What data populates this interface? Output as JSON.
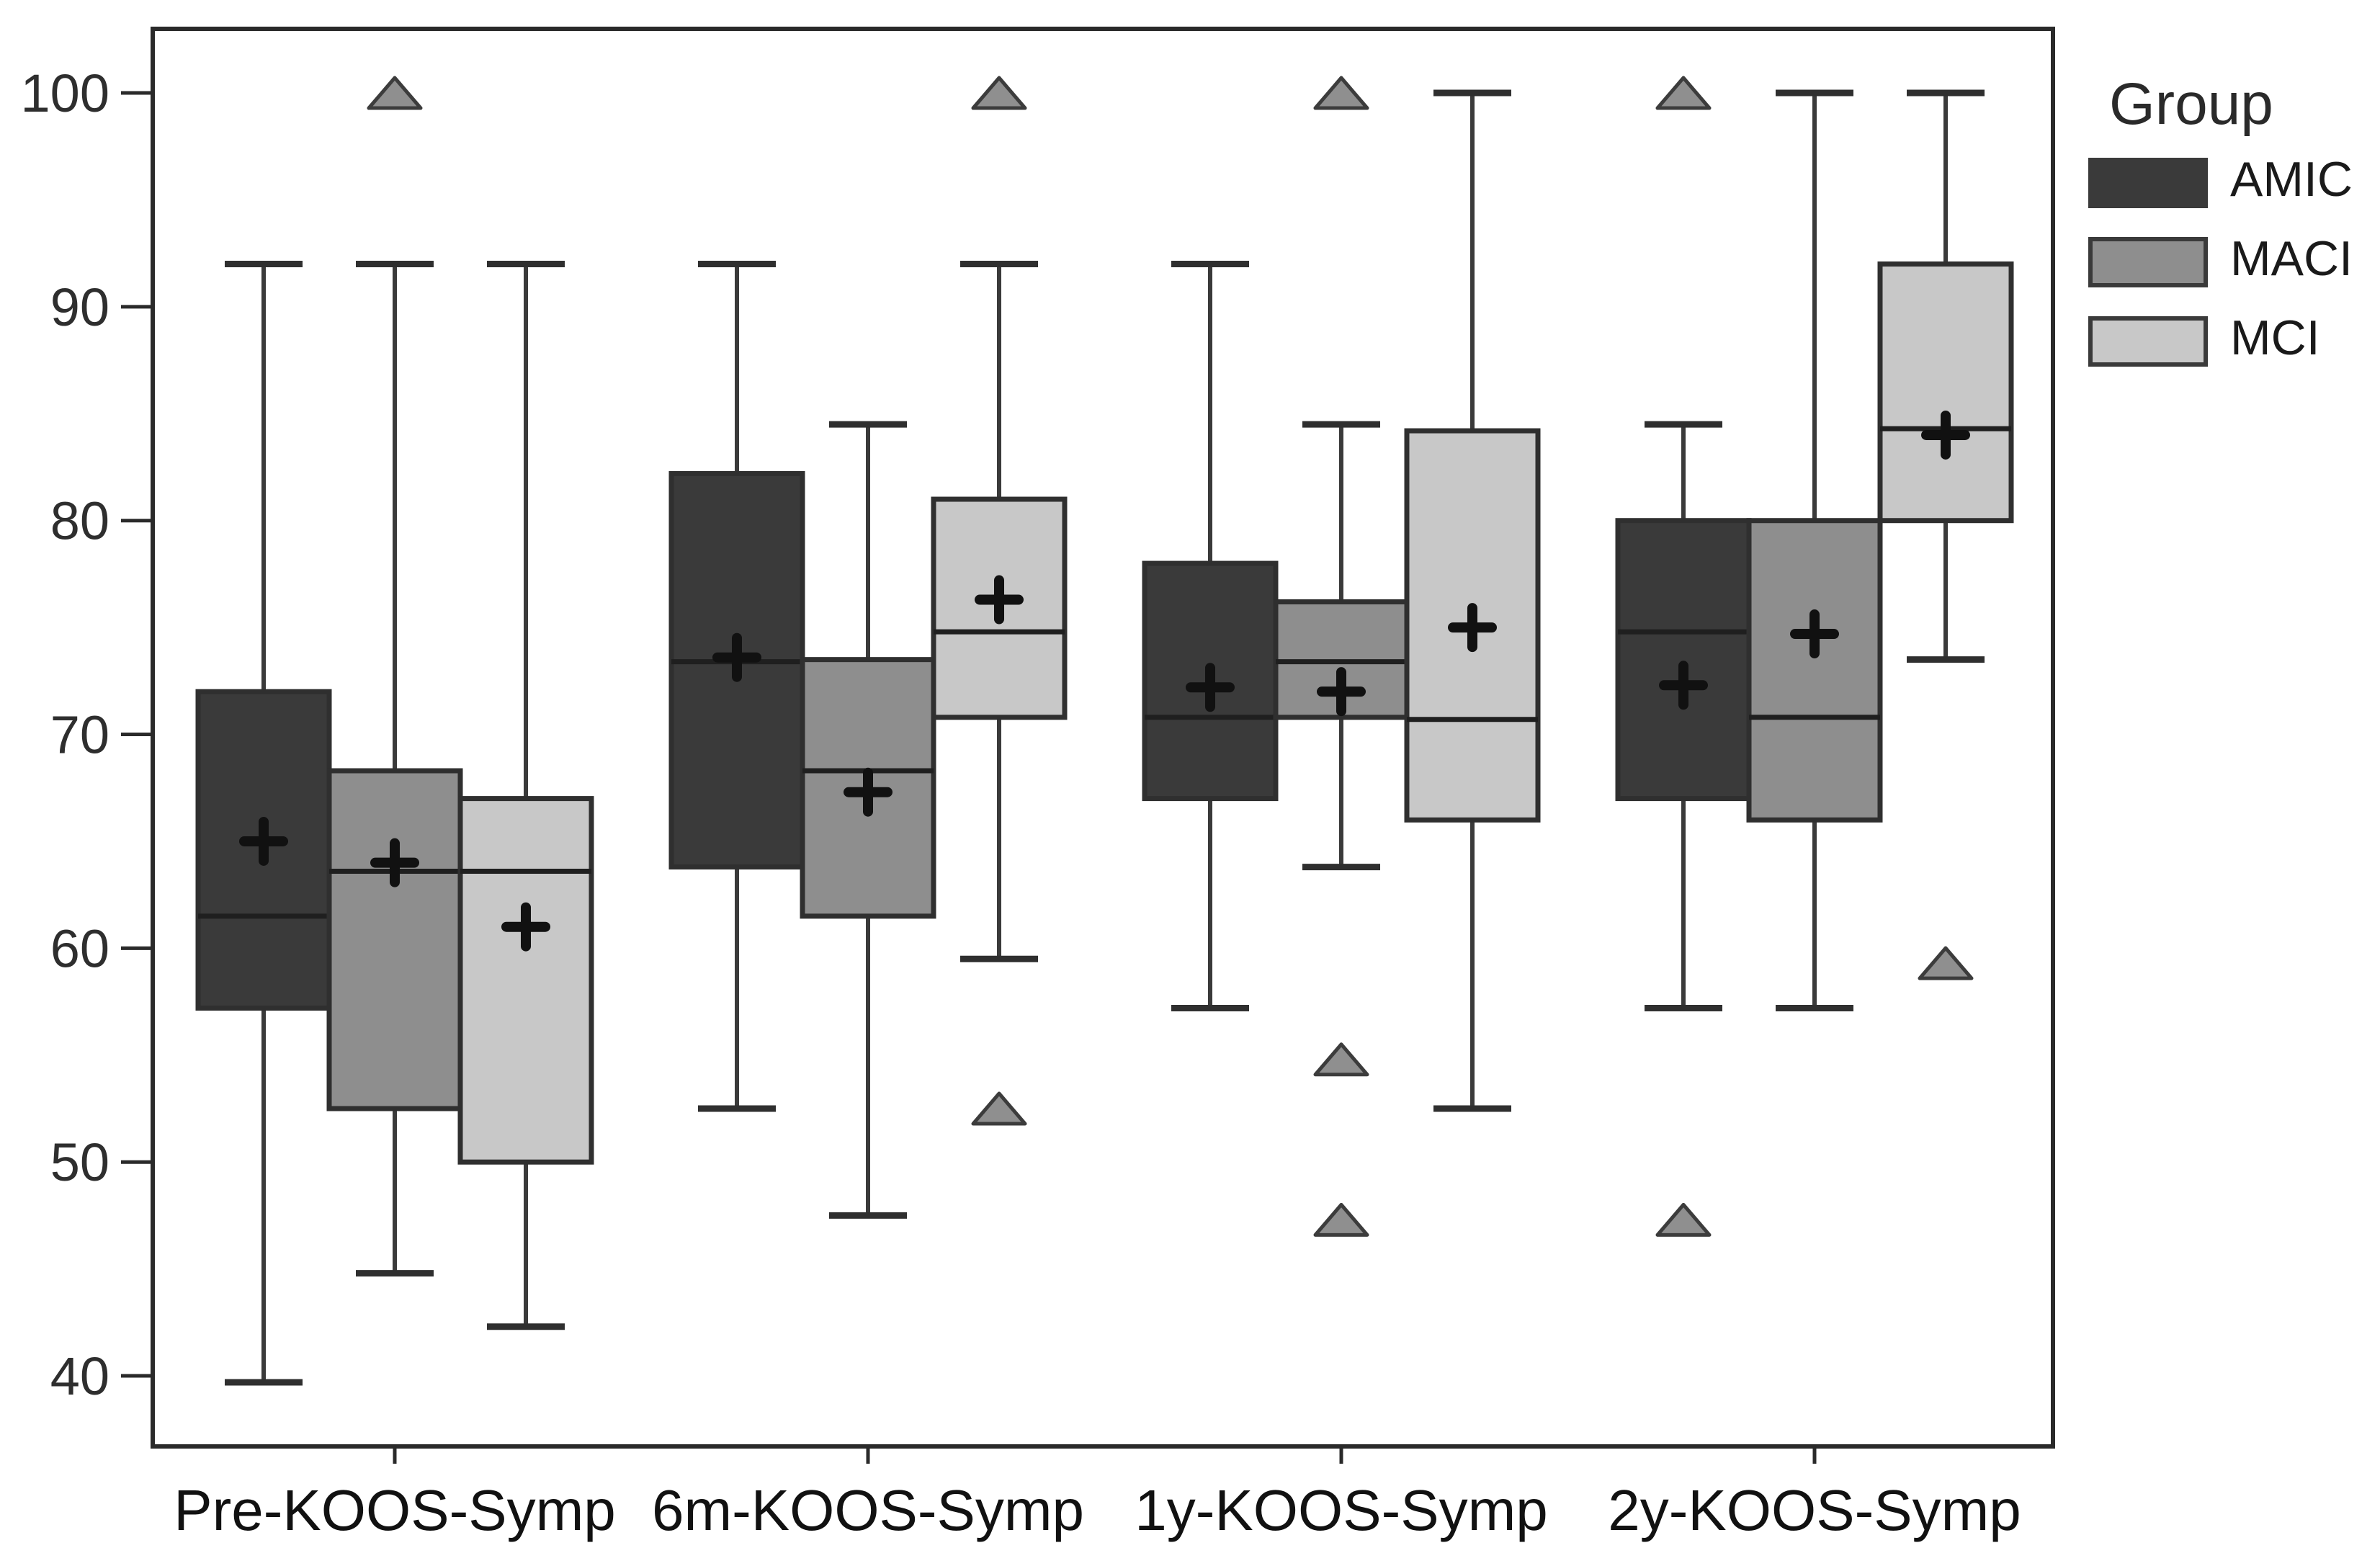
{
  "page": {
    "background": "#ffffff"
  },
  "legend": {
    "title": "Group",
    "items": [
      {
        "label": "AMIC",
        "color": "#3a3a3a"
      },
      {
        "label": "MACI",
        "color": "#8e8e8e"
      },
      {
        "label": "MCI",
        "color": "#c8c8c8"
      }
    ]
  },
  "chart_data": {
    "type": "boxplot",
    "title": "",
    "xlabel": "",
    "ylabel": "",
    "categories": [
      "Pre-KOOS-Symp",
      "6m-KOOS-Symp",
      "1y-KOOS-Symp",
      "2y-KOOS-Symp"
    ],
    "yticks": [
      40,
      50,
      60,
      70,
      80,
      90,
      100
    ],
    "ylim": [
      36.7,
      103
    ],
    "grid": false,
    "legend_position": "outside-top-right",
    "marker_meanings": {
      "plus": "mean",
      "triangle": "outlier"
    },
    "style": {
      "axis_color": "#2a2a2a",
      "tick_label_color": "#2e2e2e",
      "box_border": "#2f2f2f",
      "median_color": "#1f1f1f",
      "whisker_color": "#3a3a3a",
      "mean_color": "#111111",
      "outlier_fill": "#8f8f8f",
      "outlier_stroke": "#3c3c3c"
    },
    "series": [
      {
        "name": "AMIC",
        "fill": "#3a3a3a",
        "boxes": [
          {
            "category": "Pre-KOOS-Symp",
            "whisker_low": 39.7,
            "q1": 57.2,
            "median": 61.5,
            "q3": 72,
            "whisker_high": 92,
            "mean": 65,
            "outliers": []
          },
          {
            "category": "6m-KOOS-Symp",
            "whisker_low": 52.5,
            "q1": 63.8,
            "median": 73.4,
            "q3": 82.2,
            "whisker_high": 92,
            "mean": 73.6,
            "outliers": []
          },
          {
            "category": "1y-KOOS-Symp",
            "whisker_low": 57.2,
            "q1": 67,
            "median": 70.8,
            "q3": 78,
            "whisker_high": 92,
            "mean": 72.2,
            "outliers": []
          },
          {
            "category": "2y-KOOS-Symp",
            "whisker_low": 57.2,
            "q1": 67,
            "median": 74.8,
            "q3": 80,
            "whisker_high": 84.5,
            "mean": 72.3,
            "outliers": [
              100,
              47.3
            ]
          }
        ]
      },
      {
        "name": "MACI",
        "fill": "#8e8e8e",
        "boxes": [
          {
            "category": "Pre-KOOS-Symp",
            "whisker_low": 44.8,
            "q1": 52.5,
            "median": 63.6,
            "q3": 68.3,
            "whisker_high": 92,
            "mean": 64,
            "outliers": [
              100
            ]
          },
          {
            "category": "6m-KOOS-Symp",
            "whisker_low": 47.5,
            "q1": 61.5,
            "median": 68.3,
            "q3": 73.5,
            "whisker_high": 84.5,
            "mean": 67.3,
            "outliers": []
          },
          {
            "category": "1y-KOOS-Symp",
            "whisker_low": 63.8,
            "q1": 70.8,
            "median": 73.4,
            "q3": 76.2,
            "whisker_high": 84.5,
            "mean": 72,
            "outliers": [
              100,
              54.8,
              47.3
            ]
          },
          {
            "category": "2y-KOOS-Symp",
            "whisker_low": 57.2,
            "q1": 66,
            "median": 70.8,
            "q3": 80,
            "whisker_high": 100,
            "mean": 74.7,
            "outliers": []
          }
        ]
      },
      {
        "name": "MCI",
        "fill": "#c8c8c8",
        "boxes": [
          {
            "category": "Pre-KOOS-Symp",
            "whisker_low": 42.3,
            "q1": 50,
            "median": 63.6,
            "q3": 67,
            "whisker_high": 92,
            "mean": 61,
            "outliers": []
          },
          {
            "category": "6m-KOOS-Symp",
            "whisker_low": 59.5,
            "q1": 70.8,
            "median": 74.8,
            "q3": 81,
            "whisker_high": 92,
            "mean": 76.3,
            "outliers": [
              100,
              52.5
            ]
          },
          {
            "category": "1y-KOOS-Symp",
            "whisker_low": 52.5,
            "q1": 66,
            "median": 70.7,
            "q3": 84.2,
            "whisker_high": 100,
            "mean": 75,
            "outliers": []
          },
          {
            "category": "2y-KOOS-Symp",
            "whisker_low": 73.5,
            "q1": 80,
            "median": 84.3,
            "q3": 92,
            "whisker_high": 100,
            "mean": 84,
            "outliers": [
              59.3
            ]
          }
        ]
      }
    ]
  }
}
